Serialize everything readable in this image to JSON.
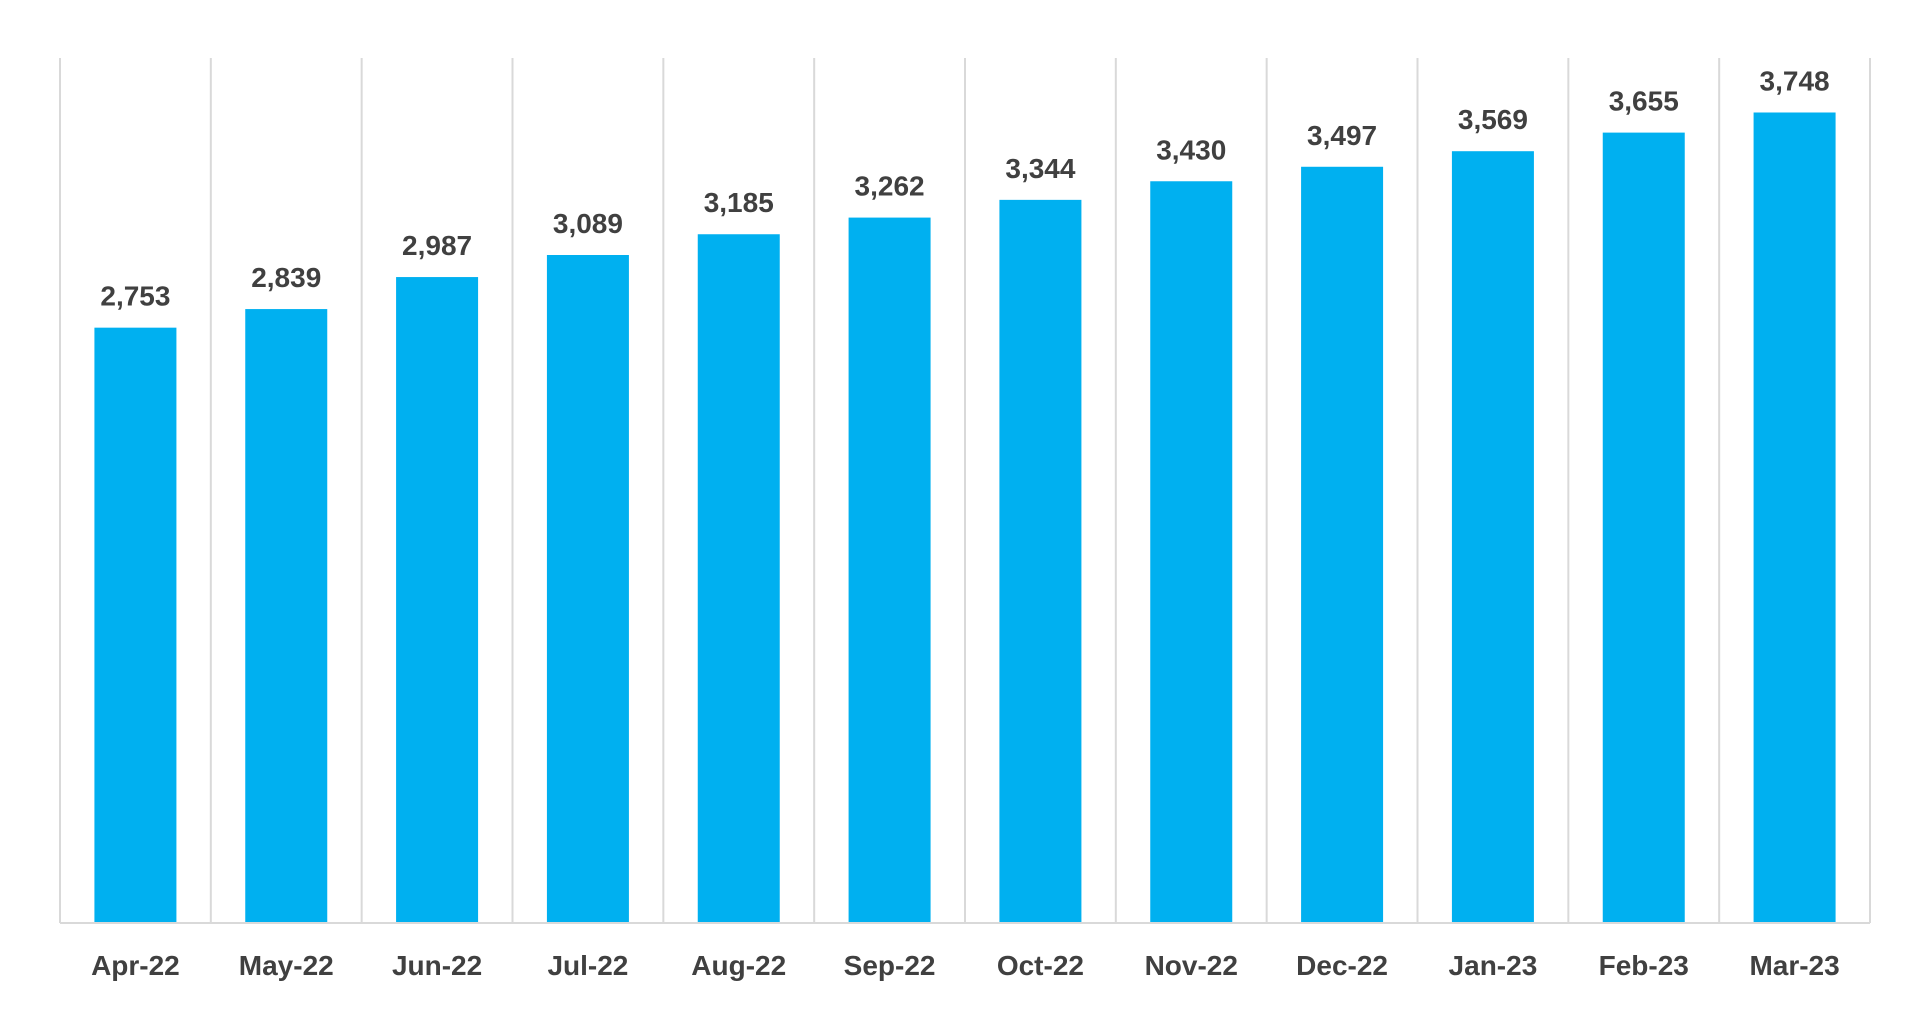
{
  "chart_data": {
    "type": "bar",
    "categories": [
      "Apr-22",
      "May-22",
      "Jun-22",
      "Jul-22",
      "Aug-22",
      "Sep-22",
      "Oct-22",
      "Nov-22",
      "Dec-22",
      "Jan-23",
      "Feb-23",
      "Mar-23"
    ],
    "values": [
      2753,
      2839,
      2987,
      3089,
      3185,
      3262,
      3344,
      3430,
      3497,
      3569,
      3655,
      3748
    ],
    "value_labels": [
      "2,753",
      "2,839",
      "2,987",
      "3,089",
      "3,185",
      "3,262",
      "3,344",
      "3,430",
      "3,497",
      "3,569",
      "3,655",
      "3,748"
    ],
    "title": "",
    "xlabel": "",
    "ylabel": "",
    "ylim": [
      0,
      4000
    ],
    "grid": "vertical category separators",
    "legend": "none",
    "colors": {
      "bar": "#00b0f0",
      "grid": "#d9d9d9",
      "label": "#404040"
    }
  }
}
